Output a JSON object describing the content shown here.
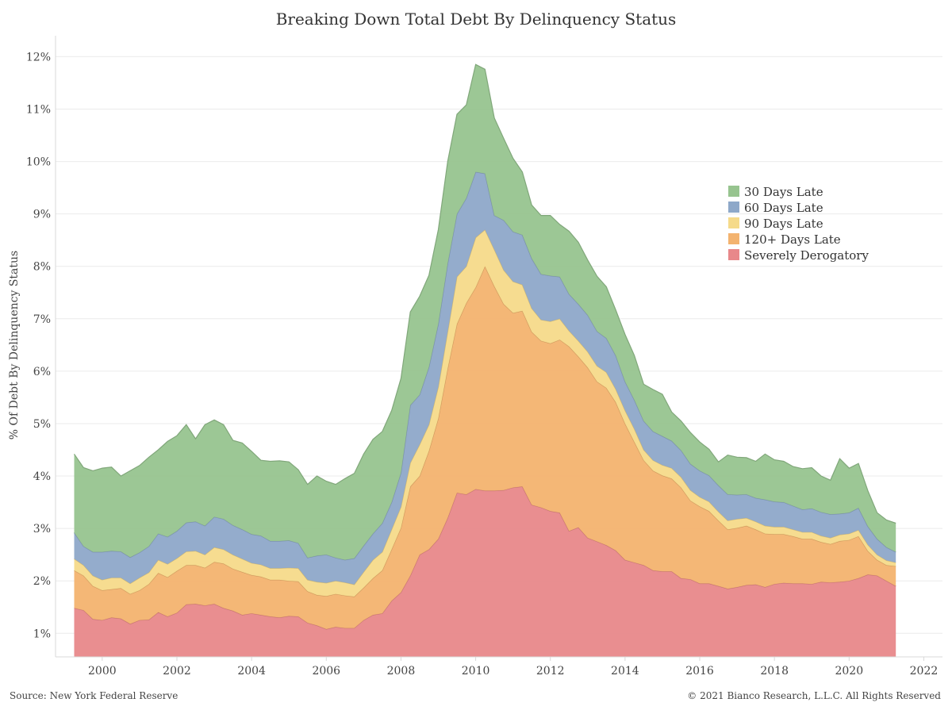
{
  "chart_data": {
    "type": "area",
    "stacked": true,
    "title": "Breaking Down Total Debt By Delinquency Status",
    "ylabel": "% Of Debt By Delinquency Status",
    "xlabel": "",
    "xlim": [
      1998.75,
      2022.5
    ],
    "ylim": [
      0.55,
      12.4
    ],
    "x_ticks": [
      2000,
      2002,
      2004,
      2006,
      2008,
      2010,
      2012,
      2014,
      2016,
      2018,
      2020,
      2022
    ],
    "y_ticks": [
      1,
      2,
      3,
      4,
      5,
      6,
      7,
      8,
      9,
      10,
      11,
      12
    ],
    "y_tick_suffix": "%",
    "grid": "horizontal",
    "legend_position": "right-center",
    "x": [
      1999.25,
      1999.5,
      1999.75,
      2000.0,
      2000.25,
      2000.5,
      2000.75,
      2001.0,
      2001.25,
      2001.5,
      2001.75,
      2002.0,
      2002.25,
      2002.5,
      2002.75,
      2003.0,
      2003.25,
      2003.5,
      2003.75,
      2004.0,
      2004.25,
      2004.5,
      2004.75,
      2005.0,
      2005.25,
      2005.5,
      2005.75,
      2006.0,
      2006.25,
      2006.5,
      2006.75,
      2007.0,
      2007.25,
      2007.5,
      2007.75,
      2008.0,
      2008.25,
      2008.5,
      2008.75,
      2009.0,
      2009.25,
      2009.5,
      2009.75,
      2010.0,
      2010.25,
      2010.5,
      2010.75,
      2011.0,
      2011.25,
      2011.5,
      2011.75,
      2012.0,
      2012.25,
      2012.5,
      2012.75,
      2013.0,
      2013.25,
      2013.5,
      2013.75,
      2014.0,
      2014.25,
      2014.5,
      2014.75,
      2015.0,
      2015.25,
      2015.5,
      2015.75,
      2016.0,
      2016.25,
      2016.5,
      2016.75,
      2017.0,
      2017.25,
      2017.5,
      2017.75,
      2018.0,
      2018.25,
      2018.5,
      2018.75,
      2019.0,
      2019.25,
      2019.5,
      2019.75,
      2020.0,
      2020.25,
      2020.5,
      2020.75,
      2021.0,
      2021.25
    ],
    "series": [
      {
        "name": "Severely Derogatory",
        "color": "#e8888a",
        "values": [
          1.48,
          1.44,
          1.27,
          1.25,
          1.3,
          1.28,
          1.18,
          1.25,
          1.26,
          1.4,
          1.32,
          1.39,
          1.55,
          1.56,
          1.53,
          1.56,
          1.48,
          1.43,
          1.35,
          1.38,
          1.35,
          1.32,
          1.3,
          1.33,
          1.32,
          1.2,
          1.15,
          1.08,
          1.12,
          1.1,
          1.1,
          1.25,
          1.35,
          1.38,
          1.62,
          1.78,
          2.1,
          2.5,
          2.6,
          2.8,
          3.2,
          3.68,
          3.65,
          3.75,
          3.72,
          3.72,
          3.73,
          3.78,
          3.8,
          3.45,
          3.4,
          3.33,
          3.3,
          2.95,
          3.02,
          2.82,
          2.75,
          2.68,
          2.58,
          2.4,
          2.35,
          2.3,
          2.2,
          2.18,
          2.18,
          2.05,
          2.03,
          1.95,
          1.95,
          1.9,
          1.85,
          1.88,
          1.92,
          1.93,
          1.88,
          1.94,
          1.96,
          1.95,
          1.95,
          1.94,
          1.98,
          1.97,
          1.98,
          2.0,
          2.05,
          2.12,
          2.1,
          2.0,
          1.9
        ]
      },
      {
        "name": "120+ Days Late",
        "color": "#f3b36f",
        "values": [
          0.72,
          0.66,
          0.63,
          0.57,
          0.54,
          0.58,
          0.57,
          0.57,
          0.68,
          0.75,
          0.75,
          0.8,
          0.75,
          0.74,
          0.72,
          0.8,
          0.85,
          0.8,
          0.82,
          0.73,
          0.73,
          0.7,
          0.72,
          0.67,
          0.67,
          0.6,
          0.58,
          0.63,
          0.63,
          0.62,
          0.6,
          0.62,
          0.7,
          0.82,
          0.98,
          1.23,
          1.7,
          1.5,
          1.88,
          2.3,
          2.85,
          3.22,
          3.65,
          3.85,
          4.28,
          3.9,
          3.55,
          3.33,
          3.35,
          3.3,
          3.18,
          3.2,
          3.3,
          3.52,
          3.26,
          3.25,
          3.05,
          3.0,
          2.83,
          2.6,
          2.3,
          2.0,
          1.9,
          1.83,
          1.77,
          1.73,
          1.5,
          1.47,
          1.38,
          1.25,
          1.13,
          1.13,
          1.13,
          1.05,
          1.02,
          0.95,
          0.93,
          0.9,
          0.85,
          0.86,
          0.76,
          0.73,
          0.78,
          0.78,
          0.8,
          0.45,
          0.3,
          0.3,
          0.38
        ]
      },
      {
        "name": "90 Days Late",
        "color": "#f5da8a",
        "values": [
          0.22,
          0.2,
          0.2,
          0.2,
          0.22,
          0.2,
          0.2,
          0.24,
          0.22,
          0.25,
          0.25,
          0.24,
          0.26,
          0.27,
          0.25,
          0.28,
          0.27,
          0.27,
          0.25,
          0.23,
          0.23,
          0.22,
          0.22,
          0.25,
          0.25,
          0.22,
          0.25,
          0.25,
          0.25,
          0.25,
          0.23,
          0.3,
          0.35,
          0.35,
          0.38,
          0.4,
          0.45,
          0.6,
          0.5,
          0.6,
          0.7,
          0.9,
          0.7,
          0.95,
          0.7,
          0.7,
          0.65,
          0.6,
          0.5,
          0.45,
          0.4,
          0.42,
          0.4,
          0.3,
          0.3,
          0.3,
          0.3,
          0.3,
          0.25,
          0.25,
          0.25,
          0.2,
          0.2,
          0.2,
          0.2,
          0.2,
          0.2,
          0.18,
          0.18,
          0.17,
          0.17,
          0.17,
          0.15,
          0.15,
          0.15,
          0.14,
          0.14,
          0.13,
          0.13,
          0.13,
          0.12,
          0.12,
          0.12,
          0.12,
          0.12,
          0.12,
          0.1,
          0.09,
          0.07
        ]
      },
      {
        "name": "60 Days Late",
        "color": "#8ea8c9",
        "values": [
          0.5,
          0.36,
          0.45,
          0.53,
          0.51,
          0.5,
          0.5,
          0.48,
          0.5,
          0.5,
          0.52,
          0.52,
          0.55,
          0.56,
          0.55,
          0.58,
          0.58,
          0.56,
          0.56,
          0.55,
          0.55,
          0.52,
          0.52,
          0.52,
          0.48,
          0.42,
          0.5,
          0.54,
          0.44,
          0.43,
          0.5,
          0.5,
          0.5,
          0.55,
          0.52,
          0.65,
          1.1,
          0.95,
          1.1,
          1.2,
          1.3,
          1.2,
          1.3,
          1.25,
          1.07,
          0.65,
          0.95,
          0.95,
          0.95,
          0.95,
          0.87,
          0.87,
          0.8,
          0.7,
          0.7,
          0.7,
          0.66,
          0.65,
          0.64,
          0.55,
          0.55,
          0.55,
          0.55,
          0.55,
          0.52,
          0.51,
          0.5,
          0.5,
          0.5,
          0.5,
          0.5,
          0.46,
          0.45,
          0.45,
          0.5,
          0.48,
          0.47,
          0.45,
          0.43,
          0.45,
          0.45,
          0.45,
          0.4,
          0.4,
          0.42,
          0.35,
          0.3,
          0.25,
          0.2
        ]
      },
      {
        "name": "30 Days Late",
        "color": "#97c48f",
        "values": [
          1.5,
          1.5,
          1.55,
          1.6,
          1.6,
          1.44,
          1.65,
          1.66,
          1.7,
          1.6,
          1.82,
          1.82,
          1.87,
          1.58,
          1.93,
          1.85,
          1.8,
          1.62,
          1.65,
          1.58,
          1.44,
          1.52,
          1.53,
          1.5,
          1.4,
          1.4,
          1.52,
          1.4,
          1.4,
          1.55,
          1.62,
          1.75,
          1.8,
          1.75,
          1.75,
          1.8,
          1.78,
          1.88,
          1.75,
          1.8,
          1.95,
          1.9,
          1.78,
          2.05,
          1.99,
          1.86,
          1.56,
          1.4,
          1.2,
          1.02,
          1.12,
          1.15,
          1.0,
          1.2,
          1.18,
          1.05,
          1.05,
          0.98,
          0.87,
          0.9,
          0.85,
          0.7,
          0.8,
          0.8,
          0.55,
          0.56,
          0.6,
          0.55,
          0.5,
          0.45,
          0.75,
          0.72,
          0.7,
          0.7,
          0.87,
          0.8,
          0.78,
          0.75,
          0.78,
          0.78,
          0.69,
          0.65,
          1.05,
          0.85,
          0.85,
          0.68,
          0.5,
          0.52,
          0.55
        ]
      }
    ],
    "legend_order": [
      "30 Days Late",
      "60 Days Late",
      "90 Days Late",
      "120+ Days Late",
      "Severely Derogatory"
    ]
  },
  "footer": {
    "source": "Source: New York Federal Reserve",
    "copyright": "© 2021 Bianco Research, L.L.C. All Rights Reserved"
  },
  "colors": {
    "grid": "#ebebeb",
    "axis": "#d9d9d9",
    "text": "#444444"
  }
}
